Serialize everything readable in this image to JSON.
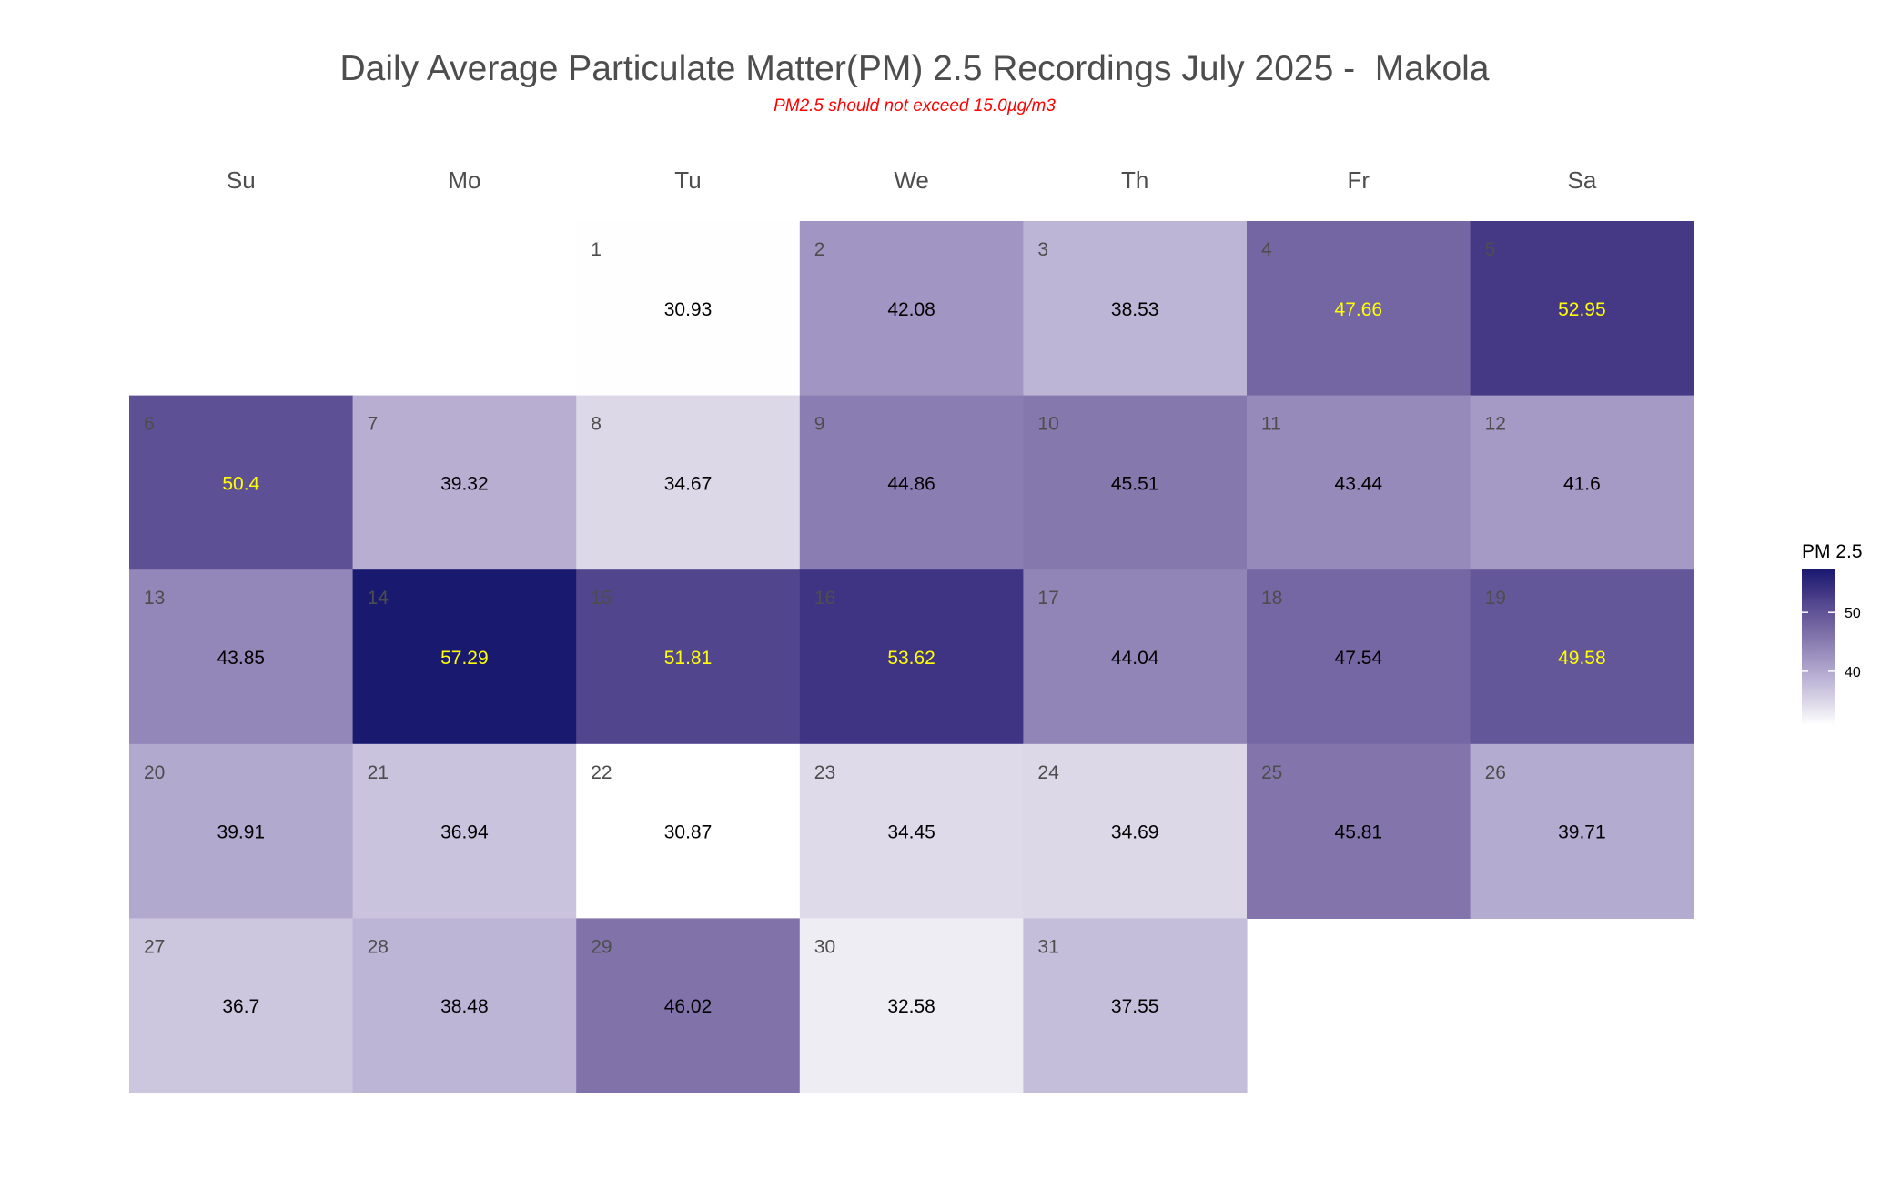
{
  "chart_data": {
    "type": "heatmap",
    "title": "Daily Average Particulate Matter(PM) 2.5 Recordings July 2025 -  Makola",
    "subtitle": "PM2.5 should not exceed 15.0µg/m3",
    "weekdays": [
      "Su",
      "Mo",
      "Tu",
      "We",
      "Th",
      "Fr",
      "Sa"
    ],
    "first_weekday_index": 2,
    "days": [
      {
        "day": "1",
        "value": 30.93,
        "label": "30.93"
      },
      {
        "day": "2",
        "value": 42.08,
        "label": "42.08"
      },
      {
        "day": "3",
        "value": 38.53,
        "label": "38.53"
      },
      {
        "day": "4",
        "value": 47.66,
        "label": "47.66"
      },
      {
        "day": "5",
        "value": 52.95,
        "label": "52.95"
      },
      {
        "day": "6",
        "value": 50.4,
        "label": "50.4"
      },
      {
        "day": "7",
        "value": 39.32,
        "label": "39.32"
      },
      {
        "day": "8",
        "value": 34.67,
        "label": "34.67"
      },
      {
        "day": "9",
        "value": 44.86,
        "label": "44.86"
      },
      {
        "day": "10",
        "value": 45.51,
        "label": "45.51"
      },
      {
        "day": "11",
        "value": 43.44,
        "label": "43.44"
      },
      {
        "day": "12",
        "value": 41.6,
        "label": "41.6"
      },
      {
        "day": "13",
        "value": 43.85,
        "label": "43.85"
      },
      {
        "day": "14",
        "value": 57.29,
        "label": "57.29"
      },
      {
        "day": "15",
        "value": 51.81,
        "label": "51.81"
      },
      {
        "day": "16",
        "value": 53.62,
        "label": "53.62"
      },
      {
        "day": "17",
        "value": 44.04,
        "label": "44.04"
      },
      {
        "day": "18",
        "value": 47.54,
        "label": "47.54"
      },
      {
        "day": "19",
        "value": 49.58,
        "label": "49.58"
      },
      {
        "day": "20",
        "value": 39.91,
        "label": "39.91"
      },
      {
        "day": "21",
        "value": 36.94,
        "label": "36.94"
      },
      {
        "day": "22",
        "value": 30.87,
        "label": "30.87"
      },
      {
        "day": "23",
        "value": 34.45,
        "label": "34.45"
      },
      {
        "day": "24",
        "value": 34.69,
        "label": "34.69"
      },
      {
        "day": "25",
        "value": 45.81,
        "label": "45.81"
      },
      {
        "day": "26",
        "value": 39.71,
        "label": "39.71"
      },
      {
        "day": "27",
        "value": 36.7,
        "label": "36.7"
      },
      {
        "day": "28",
        "value": 38.48,
        "label": "38.48"
      },
      {
        "day": "29",
        "value": 46.02,
        "label": "46.02"
      },
      {
        "day": "30",
        "value": 32.58,
        "label": "32.58"
      },
      {
        "day": "31",
        "value": 37.55,
        "label": "37.55"
      }
    ],
    "highlight_days": [
      "4",
      "5",
      "6",
      "14",
      "15",
      "16",
      "19"
    ],
    "legend": {
      "title": "PM 2.5",
      "ticks": [
        {
          "value": 40,
          "label": "40"
        },
        {
          "value": 50,
          "label": "50"
        }
      ],
      "range": [
        30.87,
        57.29
      ],
      "placement": "right"
    },
    "color_scale": {
      "low": "#ffffff",
      "high": "#191970",
      "stops": [
        [
          30.87,
          "#ffffff"
        ],
        [
          34.45,
          "#dedae9"
        ],
        [
          38.53,
          "#bdb5d6"
        ],
        [
          42.08,
          "#a196c3"
        ],
        [
          46.02,
          "#8173aa"
        ],
        [
          47.66,
          "#7466a2"
        ],
        [
          51.81,
          "#51458e"
        ],
        [
          52.95,
          "#453986"
        ],
        [
          57.29,
          "#191970"
        ]
      ]
    },
    "colors": {
      "title": "#4d4d4d",
      "subtitle": "#ff0000",
      "day_number": "#4d4d4d",
      "value_default": "#000000",
      "value_highlight": "#ffff00"
    }
  }
}
